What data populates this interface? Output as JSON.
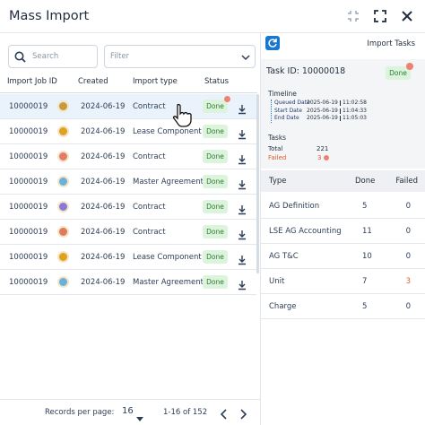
{
  "header": {
    "title": "Mass Import"
  },
  "search": {
    "placeholder": "Search"
  },
  "filter": {
    "placeholder": "Filter"
  },
  "jobs_table": {
    "columns": [
      "Import Job ID",
      "Created",
      "Import type",
      "Status"
    ],
    "rows": [
      [
        "10000019",
        "2024-06-19",
        "Contract",
        "Done"
      ],
      [
        "10000019",
        "2024-06-19",
        "Lease Component",
        "Done"
      ],
      [
        "10000019",
        "2024-06-19",
        "Contract",
        "Done"
      ],
      [
        "10000019",
        "2024-06-19",
        "Master Agreement",
        "Done"
      ],
      [
        "10000019",
        "2024-06-19",
        "Contract",
        "Done"
      ],
      [
        "10000019",
        "2024-06-19",
        "Contract",
        "Done"
      ],
      [
        "10000019",
        "2024-06-19",
        "Lease Component",
        "Done"
      ],
      [
        "10000019",
        "2024-06-19",
        "Master Agreement",
        "Done"
      ]
    ]
  },
  "pagination": {
    "label": "Records per page:",
    "per_page": "16",
    "range": "1-16 of 152"
  },
  "task_panel": {
    "title": "Import Tasks",
    "task_id": "Task ID: 10000018",
    "status": "Done",
    "timeline_title": "Timeline",
    "timeline": [
      {
        "label": "Queued Date",
        "date": "2025-06-19",
        "time": "11:02:58"
      },
      {
        "label": "Start Date",
        "date": "2025-06-19",
        "time": "11:04:33"
      },
      {
        "label": "End Date",
        "date": "2025-06-19",
        "time": "11:05:03"
      }
    ],
    "tasks_title": "Tasks",
    "total": {
      "label": "Total",
      "value": "221"
    },
    "failed": {
      "label": "Failed",
      "value": "3"
    },
    "table": {
      "columns": [
        "Type",
        "Done",
        "Failed"
      ],
      "rows": [
        [
          "AG Definition",
          "5",
          "0"
        ],
        [
          "LSE AG Accounting",
          "11",
          "0"
        ],
        [
          "AG T&C",
          "10",
          "0"
        ],
        [
          "Unit",
          "7",
          "3"
        ],
        [
          "Charge",
          "5",
          "0"
        ]
      ]
    }
  }
}
